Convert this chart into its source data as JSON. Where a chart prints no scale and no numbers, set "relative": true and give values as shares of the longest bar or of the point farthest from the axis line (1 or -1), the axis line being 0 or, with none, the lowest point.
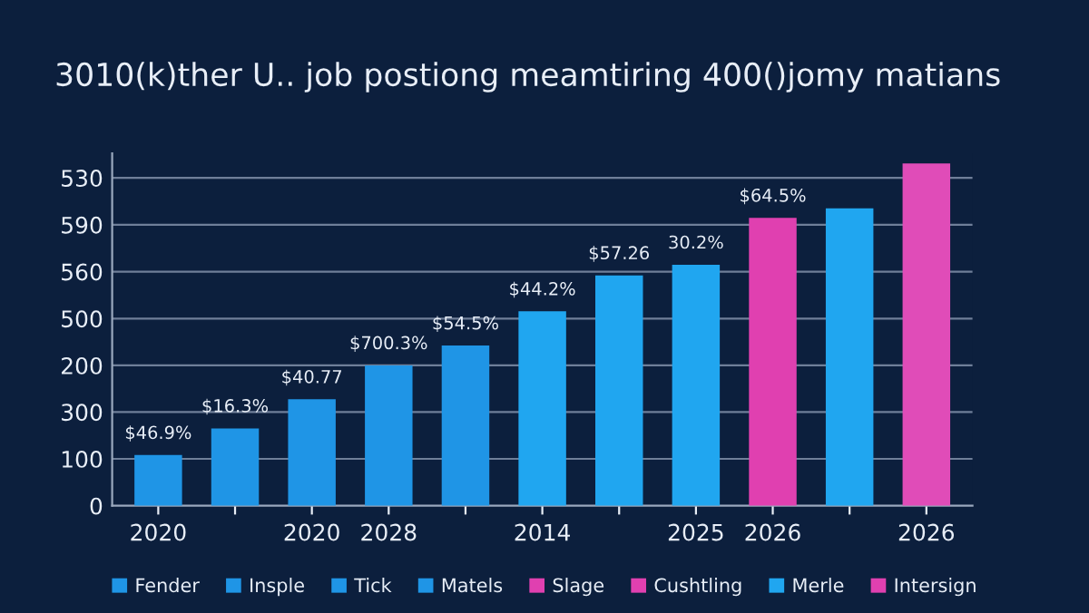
{
  "chart_data": {
    "type": "bar",
    "title": "3010(k)ther U.. job postiong meamtiring 400()jomy matians",
    "categories": [
      "2020",
      null,
      "2020",
      "2028",
      null,
      "2014",
      null,
      "2025",
      "2026",
      null,
      "2026"
    ],
    "relative": true,
    "series": [
      {
        "name": "Fender",
        "color": "#1f95e6",
        "values": [
          0.148,
          0.226,
          0.311,
          0.41,
          0.468,
          0.568,
          0.673,
          0.704,
          0.841,
          0.869,
          1
        ],
        "colors": [
          "#1f95e6",
          "#1f95e6",
          "#1f95e6",
          "#1f95e6",
          "#1f95e6",
          "#20a6f0",
          "#20a6f0",
          "#20a6f0",
          "#e040b0",
          "#20a6f0",
          "#e04cb8"
        ]
      },
      {
        "name": "Insple",
        "color": "#1f95e6",
        "values": [
          null,
          null,
          null,
          null,
          null,
          null,
          null,
          null,
          null,
          null,
          null
        ]
      },
      {
        "name": "Tick",
        "color": "#1f95e6",
        "values": [
          null,
          null,
          null,
          null,
          null,
          null,
          null,
          null,
          null,
          null,
          null
        ]
      },
      {
        "name": "Matels",
        "color": "#1f95e6",
        "values": [
          null,
          null,
          null,
          null,
          null,
          null,
          null,
          null,
          null,
          null,
          null
        ]
      },
      {
        "name": "Slage",
        "color": "#e040b0",
        "values": [
          null,
          null,
          null,
          null,
          null,
          null,
          null,
          null,
          null,
          null,
          null
        ]
      },
      {
        "name": "Cushtling",
        "color": "#e040b0",
        "values": [
          null,
          null,
          null,
          null,
          null,
          null,
          null,
          null,
          null,
          null,
          null
        ]
      },
      {
        "name": "Merle",
        "color": "#20a6f0",
        "values": [
          null,
          null,
          null,
          null,
          null,
          null,
          null,
          null,
          null,
          null,
          null
        ]
      },
      {
        "name": "Intersign",
        "color": "#e040b0",
        "values": [
          null,
          null,
          null,
          null,
          null,
          null,
          null,
          null,
          null,
          null,
          null
        ]
      }
    ],
    "ref_lines": [
      {
        "axis": "y",
        "value": 0.137,
        "color": "#6f7f99"
      },
      {
        "axis": "y",
        "value": 0.274,
        "color": "#6f7f99"
      },
      {
        "axis": "y",
        "value": 0.41,
        "color": "#6f7f99"
      },
      {
        "axis": "y",
        "value": 0.547,
        "color": "#6f7f99"
      },
      {
        "axis": "y",
        "value": 0.684,
        "color": "#6f7f99"
      },
      {
        "axis": "y",
        "value": 0.821,
        "color": "#6f7f99"
      },
      {
        "axis": "y",
        "value": 0.958,
        "color": "#6f7f99"
      }
    ],
    "annotations": [
      "0",
      "100",
      "300",
      "200",
      "500",
      "560",
      "590",
      "530",
      {
        "text": "$46.9%",
        "x": "2020",
        "y": 0.148
      },
      {
        "text": "$16.3%",
        "y": 0.226
      },
      {
        "text": "$40.77",
        "y": 0.311
      },
      {
        "text": "$700.3%",
        "x": "2028",
        "y": 0.41
      },
      {
        "text": "$54.5%",
        "y": 0.468
      },
      {
        "text": "$44.2%",
        "x": "2014",
        "y": 0.568
      },
      {
        "text": "$57.26",
        "y": 0.673
      },
      {
        "text": "30.2%",
        "x": "2025",
        "y": 0.704
      },
      {
        "text": "$64.5%",
        "y": 0.841
      }
    ],
    "legend": "bottom"
  }
}
